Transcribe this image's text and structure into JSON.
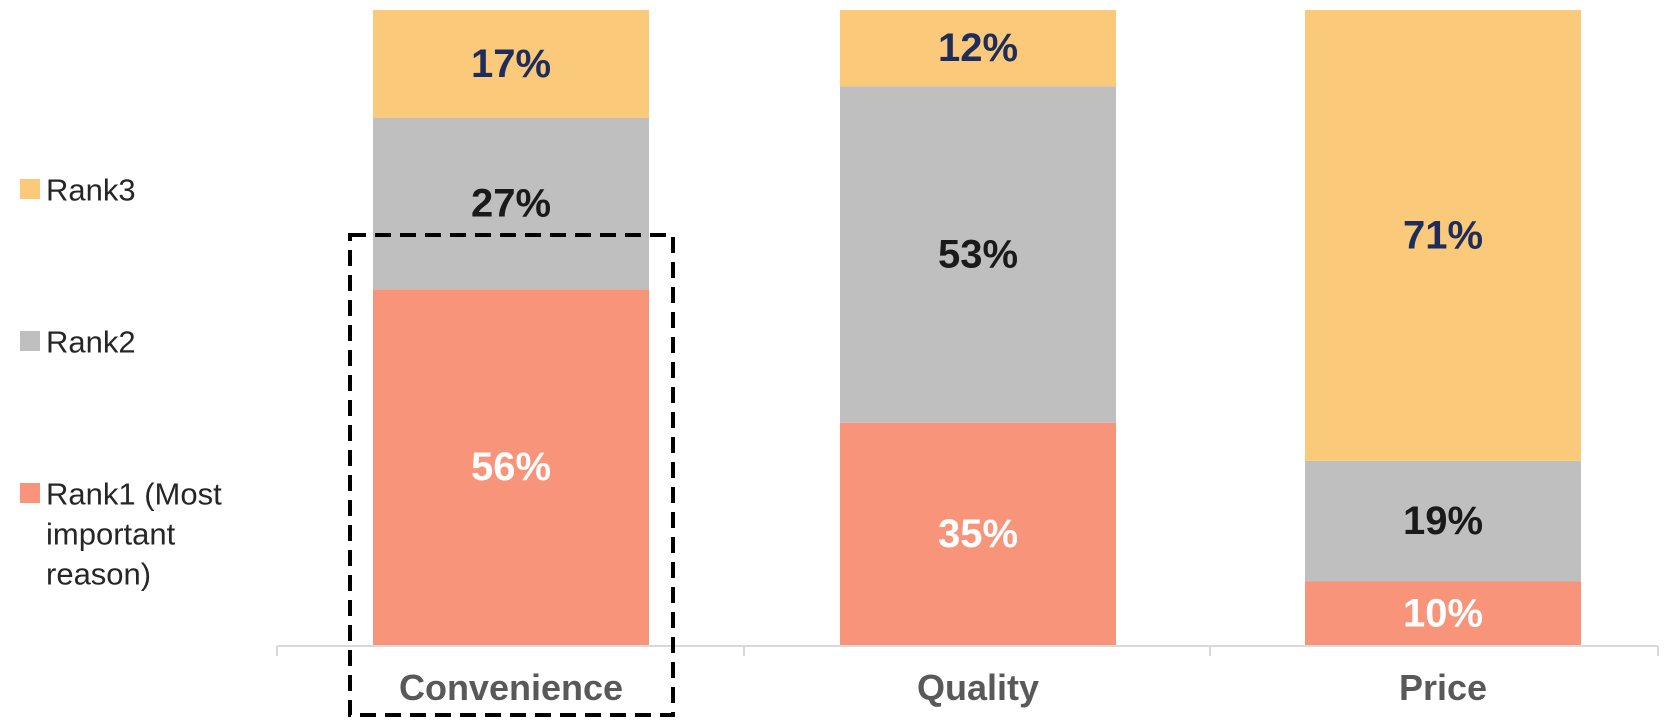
{
  "chart_data": {
    "type": "bar",
    "stacked": true,
    "categories": [
      "Convenience",
      "Quality",
      "Price"
    ],
    "series": [
      {
        "name": "Rank1 (Most important reason)",
        "values": [
          56,
          35,
          10
        ],
        "color": "#F79479",
        "label_color": "#FFFFFF"
      },
      {
        "name": "Rank2",
        "values": [
          27,
          53,
          19
        ],
        "color": "#BFBFBF",
        "label_color": "#1A1A1A"
      },
      {
        "name": "Rank3",
        "values": [
          17,
          12,
          71
        ],
        "color": "#FAC97A",
        "label_color": "#1F2D5A"
      }
    ],
    "value_suffix": "%",
    "ylim": [
      0,
      100
    ],
    "grid": false,
    "legend_position": "left",
    "legend": [
      {
        "series": 2,
        "lines": [
          "Rank3"
        ]
      },
      {
        "series": 1,
        "lines": [
          "Rank2"
        ]
      },
      {
        "series": 0,
        "lines": [
          "Rank1 (Most",
          "important",
          "reason)"
        ]
      }
    ],
    "highlight": {
      "category": "Convenience",
      "style": "dashed-box"
    }
  }
}
